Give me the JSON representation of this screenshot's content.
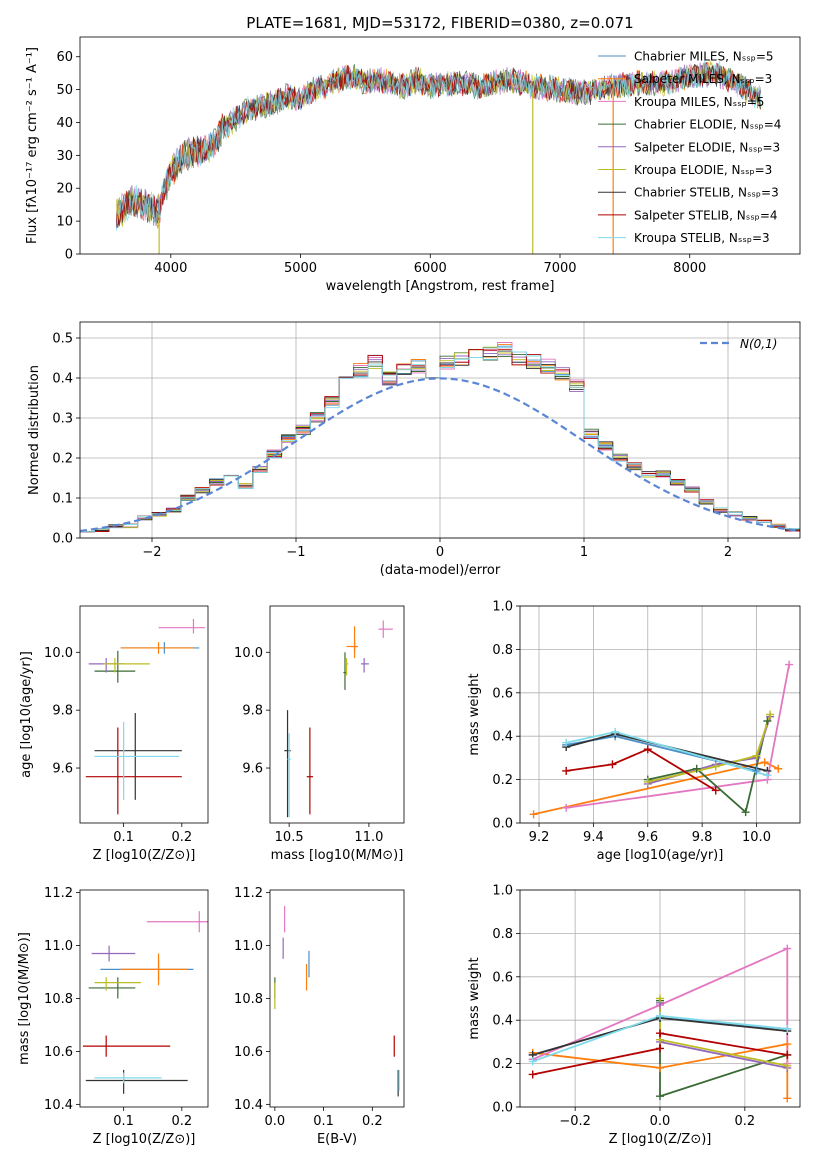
{
  "colors": [
    "#4a90c8",
    "#ff7f0e",
    "#e377c2",
    "#3a6b35",
    "#9467bd",
    "#bcbd22",
    "#333333",
    "#b30000",
    "#7fdbea"
  ],
  "chart_data": [
    {
      "id": "spectrum",
      "type": "line",
      "title": "PLATE=1681, MJD=53172, FIBERID=0380, z=0.071",
      "xlabel": "wavelength [Angstrom, rest frame]",
      "ylabel": "Flux [fλ10⁻¹⁷ erg cm⁻² s⁻¹ A⁻¹]",
      "xlim": [
        3300,
        8850
      ],
      "ylim": [
        0,
        66
      ],
      "xticks": [
        4000,
        5000,
        6000,
        7000,
        8000
      ],
      "yticks": [
        0,
        10,
        20,
        30,
        40,
        50,
        60
      ],
      "grid": false,
      "legend_position": "top-right",
      "series": [
        {
          "name": "Chabrier MILES, N_SSP=5",
          "note_last": ""
        },
        {
          "name": "Salpeter MILES, N_SSP=3"
        },
        {
          "name": "Kroupa MILES, N_SSP=5"
        },
        {
          "name": "Chabrier ELODIE, N_SSP=4"
        },
        {
          "name": "Salpeter ELODIE, N_SSP=3"
        },
        {
          "name": "Kroupa ELODIE, N_SSP=3"
        },
        {
          "name": "Chabrier STELIB, N_SSP=3"
        },
        {
          "name": "Salpeter STELIB, N_SSP=4"
        },
        {
          "name": "Kroupa STELIB, N_SSP=3"
        }
      ],
      "continuum": {
        "x": [
          3580,
          3700,
          3800,
          3900,
          4000,
          4100,
          4200,
          4300,
          4400,
          4500,
          4600,
          4700,
          4800,
          4900,
          5000,
          5100,
          5200,
          5300,
          5400,
          5500,
          5600,
          5700,
          5800,
          5900,
          6000,
          6200,
          6400,
          6600,
          6800,
          7000,
          7200,
          7400,
          7600,
          7800,
          8000,
          8200,
          8400,
          8550
        ],
        "y": [
          12,
          16,
          15,
          13,
          25,
          30,
          31,
          32,
          38,
          41,
          44,
          45,
          46,
          48,
          47,
          50,
          51,
          53,
          54,
          52,
          53,
          52,
          51,
          53,
          51,
          52,
          51,
          53,
          51,
          50,
          49,
          51,
          52,
          52,
          54,
          55,
          51,
          47
        ]
      },
      "drop_lines": [
        {
          "x": 3910,
          "from": 12,
          "to": 0
        },
        {
          "x": 6790,
          "from": 49,
          "to": 0
        },
        {
          "x": 7410,
          "from": 52,
          "to": 0
        }
      ]
    },
    {
      "id": "residuals",
      "type": "step",
      "xlabel": "(data-model)/error",
      "ylabel": "Normed distribution",
      "xlim": [
        -2.5,
        2.5
      ],
      "ylim": [
        0,
        0.54
      ],
      "xticks": [
        -2,
        -1,
        0,
        1,
        2
      ],
      "yticks": [
        0.0,
        0.1,
        0.2,
        0.3,
        0.4,
        0.5
      ],
      "grid": true,
      "legend": "N(0,1)",
      "bin_edges_start": -2.5,
      "bin_width": 0.1,
      "base_hist": [
        0.02,
        0.02,
        0.03,
        0.03,
        0.05,
        0.06,
        0.07,
        0.1,
        0.12,
        0.14,
        0.15,
        0.13,
        0.17,
        0.21,
        0.25,
        0.27,
        0.3,
        0.34,
        0.39,
        0.42,
        0.44,
        0.4,
        0.42,
        0.43,
        0.41,
        0.44,
        0.45,
        0.46,
        0.46,
        0.47,
        0.45,
        0.44,
        0.43,
        0.41,
        0.38,
        0.26,
        0.23,
        0.2,
        0.18,
        0.16,
        0.16,
        0.14,
        0.12,
        0.09,
        0.07,
        0.06,
        0.05,
        0.04,
        0.03,
        0.02
      ]
    },
    {
      "id": "z-age",
      "type": "errorbar",
      "xlabel": "Z [log10(Z/Z⊙)]",
      "ylabel": "age  [log10(age/yr)]",
      "xlim": [
        0.025,
        0.245
      ],
      "ylim": [
        9.41,
        10.16
      ],
      "xticks": [
        0.1,
        0.2
      ],
      "yticks": [
        9.6,
        9.8,
        10.0
      ],
      "points": [
        {
          "s": 0,
          "x": 0.17,
          "y": 10.015,
          "xerr": [
            0.075,
            0.06
          ],
          "yerr": [
            0.02,
            0.02
          ]
        },
        {
          "s": 1,
          "x": 0.16,
          "y": 10.015,
          "xerr": [
            0.065,
            0.06
          ],
          "yerr": [
            0.02,
            0.02
          ]
        },
        {
          "s": 2,
          "x": 0.22,
          "y": 10.085,
          "xerr": [
            0.06,
            0.02
          ],
          "yerr": [
            0.02,
            0.03
          ]
        },
        {
          "s": 3,
          "x": 0.09,
          "y": 9.935,
          "xerr": [
            0.04,
            0.03
          ],
          "yerr": [
            0.04,
            0.07
          ]
        },
        {
          "s": 4,
          "x": 0.07,
          "y": 9.96,
          "xerr": [
            0.03,
            0.03
          ],
          "yerr": [
            0.03,
            0.02
          ]
        },
        {
          "s": 5,
          "x": 0.085,
          "y": 9.96,
          "xerr": [
            0.02,
            0.06
          ],
          "yerr": [
            0.03,
            0.02
          ]
        },
        {
          "s": 6,
          "x": 0.12,
          "y": 9.66,
          "xerr": [
            0.07,
            0.08
          ],
          "yerr": [
            0.17,
            0.13
          ]
        },
        {
          "s": 7,
          "x": 0.09,
          "y": 9.57,
          "xerr": [
            0.055,
            0.11
          ],
          "yerr": [
            0.13,
            0.17
          ]
        },
        {
          "s": 8,
          "x": 0.1,
          "y": 9.64,
          "xerr": [
            0.05,
            0.095
          ],
          "yerr": [
            0.15,
            0.12
          ]
        }
      ]
    },
    {
      "id": "mass-age",
      "type": "errorbar",
      "xlabel": "mass [log10(M/M⊙)]",
      "xlim": [
        10.38,
        11.22
      ],
      "ylim": [
        9.41,
        10.16
      ],
      "xticks": [
        10.5,
        11.0
      ],
      "yticks": [
        9.6,
        9.8,
        10.0
      ],
      "points": [
        {
          "s": 0,
          "x": 10.91,
          "y": 10.02,
          "xerr": [
            0.02,
            0.02
          ],
          "yerr": [
            0.02,
            0.02
          ]
        },
        {
          "s": 1,
          "x": 10.91,
          "y": 10.02,
          "xerr": [
            0.05,
            0.02
          ],
          "yerr": [
            0.04,
            0.07
          ]
        },
        {
          "s": 2,
          "x": 11.09,
          "y": 10.08,
          "xerr": [
            0.03,
            0.06
          ],
          "yerr": [
            0.03,
            0.03
          ]
        },
        {
          "s": 3,
          "x": 10.85,
          "y": 9.93,
          "xerr": [
            0.01,
            0.01
          ],
          "yerr": [
            0.06,
            0.07
          ]
        },
        {
          "s": 4,
          "x": 10.97,
          "y": 9.96,
          "xerr": [
            0.02,
            0.03
          ],
          "yerr": [
            0.03,
            0.02
          ]
        },
        {
          "s": 5,
          "x": 10.86,
          "y": 9.96,
          "xerr": [
            0.01,
            0.01
          ],
          "yerr": [
            0.04,
            0.02
          ]
        },
        {
          "s": 6,
          "x": 10.49,
          "y": 9.66,
          "xerr": [
            0.02,
            0.02
          ],
          "yerr": [
            0.23,
            0.14
          ]
        },
        {
          "s": 7,
          "x": 10.63,
          "y": 9.57,
          "xerr": [
            0.02,
            0.02
          ],
          "yerr": [
            0.13,
            0.17
          ]
        },
        {
          "s": 8,
          "x": 10.5,
          "y": 9.63,
          "xerr": [
            0.01,
            0.01
          ],
          "yerr": [
            0.2,
            0.09
          ]
        }
      ]
    },
    {
      "id": "age-weight",
      "type": "line",
      "xlabel": "age  [log10(age/yr)]",
      "ylabel": "mass weight",
      "xlim": [
        9.13,
        10.16
      ],
      "ylim": [
        0,
        1
      ],
      "xticks": [
        9.2,
        9.4,
        9.6,
        9.8,
        10.0
      ],
      "yticks": [
        0.0,
        0.2,
        0.4,
        0.6,
        0.8,
        1.0
      ],
      "grid": true,
      "series": [
        {
          "s": 0,
          "x": [
            9.3,
            9.48,
            10.0
          ],
          "y": [
            0.36,
            0.4,
            0.24
          ]
        },
        {
          "s": 1,
          "x": [
            9.18,
            10.03,
            10.08
          ],
          "y": [
            0.04,
            0.28,
            0.25
          ]
        },
        {
          "s": 2,
          "x": [
            9.3,
            10.04,
            10.12
          ],
          "y": [
            0.07,
            0.2,
            0.73
          ]
        },
        {
          "s": 3,
          "x": [
            9.6,
            9.78,
            9.96,
            10.04
          ],
          "y": [
            0.2,
            0.25,
            0.05,
            0.47
          ]
        },
        {
          "s": 4,
          "x": [
            9.6,
            9.85,
            10.0,
            10.05
          ],
          "y": [
            0.18,
            0.27,
            0.3,
            0.49
          ]
        },
        {
          "s": 5,
          "x": [
            9.6,
            9.85,
            10.0,
            10.05
          ],
          "y": [
            0.19,
            0.26,
            0.31,
            0.5
          ]
        },
        {
          "s": 6,
          "x": [
            9.3,
            9.48,
            10.04
          ],
          "y": [
            0.35,
            0.41,
            0.24
          ]
        },
        {
          "s": 7,
          "x": [
            9.3,
            9.47,
            9.6,
            9.85
          ],
          "y": [
            0.24,
            0.27,
            0.34,
            0.15
          ]
        },
        {
          "s": 8,
          "x": [
            9.3,
            9.48,
            10.04
          ],
          "y": [
            0.37,
            0.42,
            0.22
          ]
        }
      ]
    },
    {
      "id": "z-mass",
      "type": "errorbar",
      "xlabel": "Z [log10(Z/Z⊙)]",
      "ylabel": "mass [log10(M/M⊙)]",
      "xlim": [
        0.025,
        0.245
      ],
      "ylim": [
        10.39,
        11.21
      ],
      "xticks": [
        0.1,
        0.2
      ],
      "yticks": [
        10.4,
        10.6,
        10.8,
        11.0,
        11.2
      ],
      "points": [
        {
          "s": 0,
          "x": 0.16,
          "y": 10.91,
          "xerr": [
            0.1,
            0.06
          ],
          "yerr": [
            0.04,
            0.04
          ]
        },
        {
          "s": 1,
          "x": 0.16,
          "y": 10.91,
          "xerr": [
            0.065,
            0.05
          ],
          "yerr": [
            0.06,
            0.06
          ]
        },
        {
          "s": 2,
          "x": 0.23,
          "y": 11.09,
          "xerr": [
            0.09,
            0.02
          ],
          "yerr": [
            0.04,
            0.04
          ]
        },
        {
          "s": 3,
          "x": 0.09,
          "y": 10.84,
          "xerr": [
            0.05,
            0.03
          ],
          "yerr": [
            0.04,
            0.04
          ]
        },
        {
          "s": 4,
          "x": 0.075,
          "y": 10.97,
          "xerr": [
            0.03,
            0.045
          ],
          "yerr": [
            0.03,
            0.03
          ]
        },
        {
          "s": 5,
          "x": 0.07,
          "y": 10.86,
          "xerr": [
            0.02,
            0.06
          ],
          "yerr": [
            0.03,
            0.02
          ]
        },
        {
          "s": 6,
          "x": 0.1,
          "y": 10.49,
          "xerr": [
            0.065,
            0.11
          ],
          "yerr": [
            0.05,
            0.04
          ]
        },
        {
          "s": 7,
          "x": 0.07,
          "y": 10.62,
          "xerr": [
            0.04,
            0.11
          ],
          "yerr": [
            0.04,
            0.04
          ]
        },
        {
          "s": 8,
          "x": 0.1,
          "y": 10.5,
          "xerr": [
            0.05,
            0.065
          ],
          "yerr": [
            0.02,
            0.02
          ]
        }
      ]
    },
    {
      "id": "ebv-mass",
      "type": "errorbar",
      "xlabel": "E(B-V)",
      "xlim": [
        -0.01,
        0.265
      ],
      "ylim": [
        10.39,
        11.21
      ],
      "xticks": [
        0.0,
        0.1,
        0.2
      ],
      "yticks": [
        10.4,
        10.6,
        10.8,
        11.0,
        11.2
      ],
      "points": [
        {
          "s": 0,
          "x": 0.07,
          "y": 10.93,
          "xerr": [
            0,
            0
          ],
          "yerr": [
            0.05,
            0.05
          ]
        },
        {
          "s": 1,
          "x": 0.065,
          "y": 10.88,
          "xerr": [
            0,
            0
          ],
          "yerr": [
            0.05,
            0.05
          ]
        },
        {
          "s": 2,
          "x": 0.02,
          "y": 11.1,
          "xerr": [
            0,
            0
          ],
          "yerr": [
            0.05,
            0.05
          ]
        },
        {
          "s": 3,
          "x": 0.0,
          "y": 10.84,
          "xerr": [
            0,
            0
          ],
          "yerr": [
            0.04,
            0.04
          ]
        },
        {
          "s": 4,
          "x": 0.017,
          "y": 10.99,
          "xerr": [
            0,
            0
          ],
          "yerr": [
            0.04,
            0.04
          ]
        },
        {
          "s": 5,
          "x": 0.0,
          "y": 10.81,
          "xerr": [
            0,
            0
          ],
          "yerr": [
            0.05,
            0.05
          ]
        },
        {
          "s": 6,
          "x": 0.253,
          "y": 10.48,
          "xerr": [
            0,
            0
          ],
          "yerr": [
            0.05,
            0.05
          ]
        },
        {
          "s": 7,
          "x": 0.245,
          "y": 10.62,
          "xerr": [
            0,
            0
          ],
          "yerr": [
            0.04,
            0.04
          ]
        },
        {
          "s": 8,
          "x": 0.255,
          "y": 10.49,
          "xerr": [
            0,
            0
          ],
          "yerr": [
            0.04,
            0.04
          ]
        }
      ]
    },
    {
      "id": "z-weight",
      "type": "line",
      "xlabel": "Z [log10(Z/Z⊙)]",
      "ylabel": "mass weight",
      "xlim": [
        -0.33,
        0.33
      ],
      "ylim": [
        0,
        1
      ],
      "xticks": [
        -0.2,
        0.0,
        0.2
      ],
      "yticks": [
        0.0,
        0.2,
        0.4,
        0.6,
        0.8,
        1.0
      ],
      "grid": true,
      "series": [
        {
          "s": 0,
          "x": [
            -0.3,
            0.0,
            0.3
          ],
          "y": [
            0.24,
            0.41,
            0.36
          ]
        },
        {
          "s": 1,
          "x": [
            -0.3,
            0.0,
            0.3,
            0.3
          ],
          "y": [
            0.25,
            0.18,
            0.29,
            0.04
          ]
        },
        {
          "s": 2,
          "x": [
            -0.3,
            0.0,
            0.3,
            0.3
          ],
          "y": [
            0.22,
            0.47,
            0.73,
            0.2
          ]
        },
        {
          "s": 3,
          "x": [
            0.0,
            0.0,
            0.3
          ],
          "y": [
            0.49,
            0.05,
            0.24
          ]
        },
        {
          "s": 4,
          "x": [
            0.0,
            0.0,
            0.3
          ],
          "y": [
            0.48,
            0.3,
            0.18
          ]
        },
        {
          "s": 5,
          "x": [
            0.0,
            0.0,
            0.3
          ],
          "y": [
            0.5,
            0.31,
            0.19
          ]
        },
        {
          "s": 6,
          "x": [
            -0.3,
            0.0,
            0.3
          ],
          "y": [
            0.24,
            0.41,
            0.35
          ]
        },
        {
          "s": 7,
          "x": [
            -0.3,
            0.0,
            0.0,
            0.3
          ],
          "y": [
            0.15,
            0.27,
            0.34,
            0.24
          ]
        },
        {
          "s": 8,
          "x": [
            -0.3,
            0.0,
            0.3
          ],
          "y": [
            0.21,
            0.42,
            0.36
          ]
        }
      ]
    }
  ]
}
